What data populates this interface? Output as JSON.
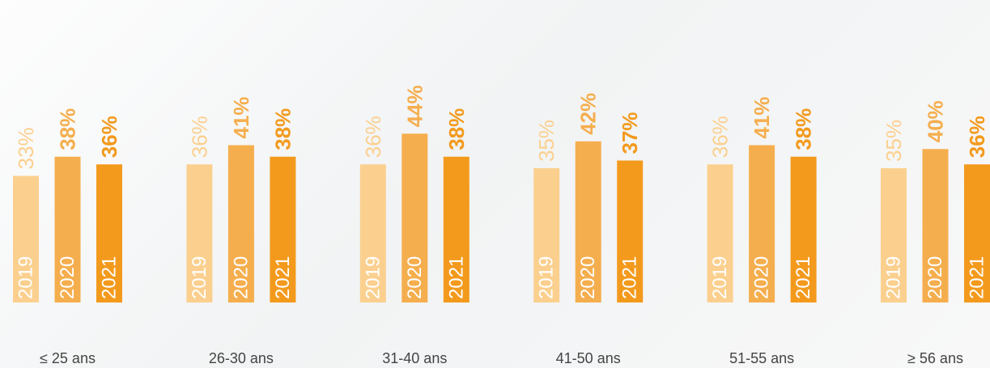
{
  "chart_data": {
    "type": "bar",
    "categories": [
      "≤ 25 ans",
      "26-30 ans",
      "31-40 ans",
      "41-50 ans",
      "51-55 ans",
      "≥ 56 ans"
    ],
    "series": [
      {
        "name": "2019",
        "color": "#fbd08f",
        "values": [
          33,
          36,
          36,
          35,
          36,
          35
        ],
        "value_labels": [
          "33%",
          "36%",
          "36%",
          "35%",
          "36%",
          "35%"
        ]
      },
      {
        "name": "2020",
        "color": "#f5ae4e",
        "values": [
          38,
          41,
          44,
          42,
          41,
          40
        ],
        "value_labels": [
          "38%",
          "41%",
          "44%",
          "42%",
          "41%",
          "40%"
        ]
      },
      {
        "name": "2021",
        "color": "#f39a1d",
        "values": [
          36,
          38,
          38,
          37,
          38,
          36
        ],
        "value_labels": [
          "36%",
          "38%",
          "38%",
          "37%",
          "38%",
          "36%"
        ]
      }
    ],
    "ylim": [
      0,
      78
    ]
  }
}
